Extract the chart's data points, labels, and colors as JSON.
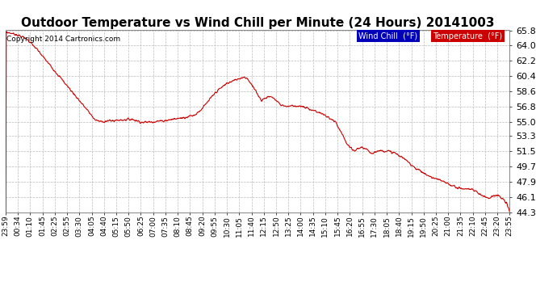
{
  "title": "Outdoor Temperature vs Wind Chill per Minute (24 Hours) 20141003",
  "copyright": "Copyright 2014 Cartronics.com",
  "ylim": [
    44.3,
    65.8
  ],
  "yticks": [
    44.3,
    46.1,
    47.9,
    49.7,
    51.5,
    53.3,
    55.0,
    56.8,
    58.6,
    60.4,
    62.2,
    64.0,
    65.8
  ],
  "background_color": "#ffffff",
  "plot_bg_color": "#ffffff",
  "grid_color": "#bbbbbb",
  "line_color": "#cc0000",
  "title_fontsize": 11,
  "legend_wind_chill_bg": "#0000bb",
  "legend_temp_bg": "#cc0000",
  "legend_text_color": "#ffffff",
  "xtick_labels": [
    "23:59",
    "00:34",
    "01:10",
    "01:45",
    "02:25",
    "02:55",
    "03:30",
    "04:05",
    "04:40",
    "05:15",
    "05:50",
    "06:25",
    "07:00",
    "07:35",
    "08:10",
    "08:45",
    "09:20",
    "09:55",
    "10:30",
    "11:05",
    "11:40",
    "12:15",
    "12:50",
    "13:25",
    "14:00",
    "14:35",
    "15:10",
    "15:45",
    "16:20",
    "16:55",
    "17:30",
    "18:05",
    "18:40",
    "19:15",
    "19:50",
    "20:25",
    "21:00",
    "21:35",
    "22:10",
    "22:45",
    "23:20",
    "23:55"
  ],
  "curve_keypoints": [
    [
      0,
      65.6
    ],
    [
      30,
      65.3
    ],
    [
      60,
      64.8
    ],
    [
      90,
      63.5
    ],
    [
      120,
      62.0
    ],
    [
      150,
      60.5
    ],
    [
      180,
      59.0
    ],
    [
      210,
      57.5
    ],
    [
      240,
      56.0
    ],
    [
      255,
      55.2
    ],
    [
      270,
      55.0
    ],
    [
      300,
      55.1
    ],
    [
      330,
      55.2
    ],
    [
      360,
      55.3
    ],
    [
      390,
      54.9
    ],
    [
      420,
      55.0
    ],
    [
      450,
      55.1
    ],
    [
      480,
      55.3
    ],
    [
      510,
      55.5
    ],
    [
      540,
      55.8
    ],
    [
      560,
      56.5
    ],
    [
      580,
      57.5
    ],
    [
      600,
      58.5
    ],
    [
      630,
      59.5
    ],
    [
      660,
      60.0
    ],
    [
      680,
      60.3
    ],
    [
      690,
      60.1
    ],
    [
      700,
      59.5
    ],
    [
      710,
      58.8
    ],
    [
      720,
      58.2
    ],
    [
      730,
      57.5
    ],
    [
      740,
      57.8
    ],
    [
      755,
      58.0
    ],
    [
      770,
      57.6
    ],
    [
      785,
      57.0
    ],
    [
      800,
      56.8
    ],
    [
      820,
      56.9
    ],
    [
      840,
      56.8
    ],
    [
      860,
      56.6
    ],
    [
      880,
      56.3
    ],
    [
      900,
      56.0
    ],
    [
      920,
      55.5
    ],
    [
      940,
      55.0
    ],
    [
      960,
      53.5
    ],
    [
      975,
      52.3
    ],
    [
      985,
      51.8
    ],
    [
      995,
      51.5
    ],
    [
      1005,
      51.8
    ],
    [
      1015,
      52.0
    ],
    [
      1025,
      51.8
    ],
    [
      1035,
      51.5
    ],
    [
      1045,
      51.3
    ],
    [
      1060,
      51.5
    ],
    [
      1075,
      51.6
    ],
    [
      1090,
      51.5
    ],
    [
      1110,
      51.3
    ],
    [
      1130,
      50.8
    ],
    [
      1150,
      50.2
    ],
    [
      1170,
      49.5
    ],
    [
      1190,
      49.0
    ],
    [
      1210,
      48.5
    ],
    [
      1230,
      48.2
    ],
    [
      1250,
      47.9
    ],
    [
      1270,
      47.5
    ],
    [
      1290,
      47.2
    ],
    [
      1310,
      47.0
    ],
    [
      1320,
      47.1
    ],
    [
      1330,
      47.0
    ],
    [
      1340,
      46.8
    ],
    [
      1350,
      46.5
    ],
    [
      1360,
      46.3
    ],
    [
      1370,
      46.1
    ],
    [
      1380,
      46.0
    ],
    [
      1390,
      46.2
    ],
    [
      1400,
      46.3
    ],
    [
      1410,
      46.1
    ],
    [
      1420,
      45.8
    ],
    [
      1430,
      45.3
    ],
    [
      1439,
      44.3
    ]
  ]
}
